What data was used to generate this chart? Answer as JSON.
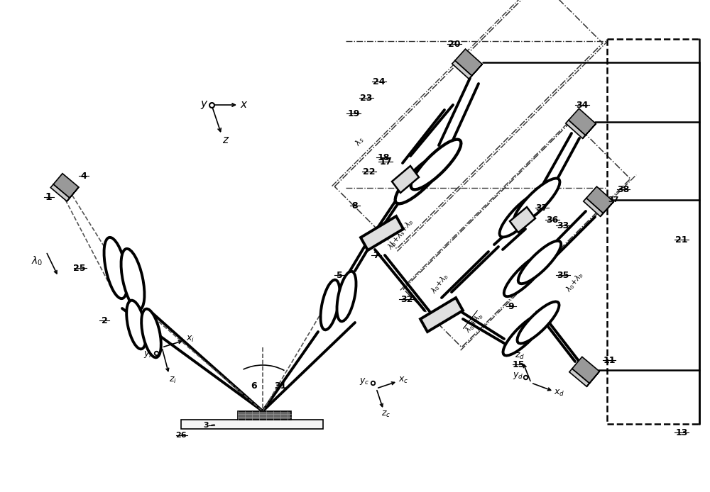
{
  "bg_color": "#ffffff",
  "line_color": "#000000",
  "figsize": [
    10.0,
    6.94
  ],
  "dpi": 100
}
